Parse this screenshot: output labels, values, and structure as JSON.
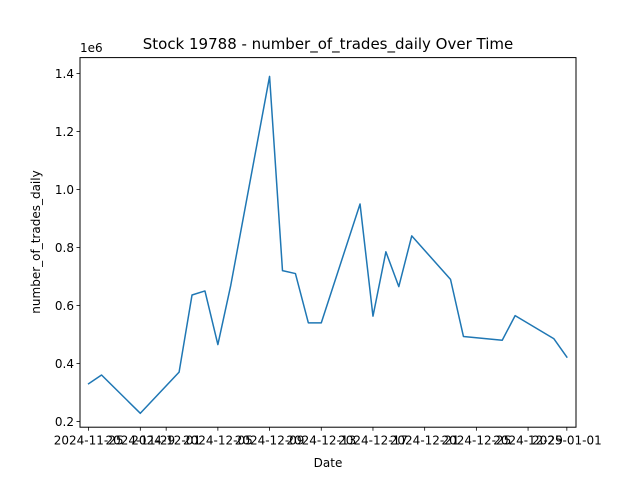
{
  "chart_data": {
    "type": "line",
    "title": "Stock 19788 - number_of_trades_daily Over Time",
    "xlabel": "Date",
    "ylabel": "number_of_trades_daily",
    "y_offset_label": "1e6",
    "ylim": [
      0.18,
      1.455
    ],
    "y_scale_factor": 1000000,
    "y_ticks": [
      0.2,
      0.4,
      0.6,
      0.8,
      1.0,
      1.2,
      1.4
    ],
    "y_tick_labels": [
      "0.2",
      "0.4",
      "0.6",
      "0.8",
      "1.0",
      "1.2",
      "1.4"
    ],
    "xlim": [
      "2024-11-24T08:00",
      "2025-01-01T17:00"
    ],
    "x_ticks": [
      "2024-11-25",
      "2024-11-29",
      "2024-12-01",
      "2024-12-05",
      "2024-12-09",
      "2024-12-13",
      "2024-12-17",
      "2024-12-21",
      "2024-12-25",
      "2024-12-29",
      "2025-01-01"
    ],
    "x_tick_labels": [
      "2024-11-25",
      "2024-11-29",
      "2024-12-01",
      "2024-12-05",
      "2024-12-09",
      "2024-12-13",
      "2024-12-17",
      "2024-12-21",
      "2024-12-25",
      "2024-12-29",
      "2025-01-01"
    ],
    "grid": false,
    "line_color": "#1f77b4",
    "series": [
      {
        "x": [
          "2024-11-25",
          "2024-11-26",
          "2024-11-29",
          "2024-12-02",
          "2024-12-03",
          "2024-12-04",
          "2024-12-05",
          "2024-12-06",
          "2024-12-09",
          "2024-12-10",
          "2024-12-11",
          "2024-12-12",
          "2024-12-13",
          "2024-12-16",
          "2024-12-17",
          "2024-12-18",
          "2024-12-19",
          "2024-12-20",
          "2024-12-23",
          "2024-12-24",
          "2024-12-27",
          "2024-12-28",
          "2024-12-31",
          "2025-01-01"
        ],
        "values": [
          0.33,
          0.36,
          0.228,
          0.37,
          0.636,
          0.65,
          0.465,
          0.67,
          1.39,
          0.72,
          0.71,
          0.54,
          0.54,
          0.95,
          0.563,
          0.785,
          0.665,
          0.84,
          0.69,
          0.493,
          0.48,
          0.565,
          0.485,
          0.422
        ]
      }
    ]
  }
}
